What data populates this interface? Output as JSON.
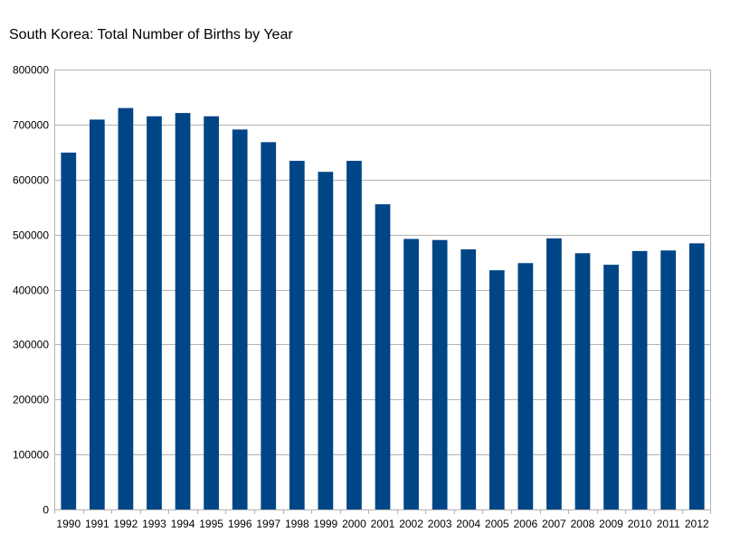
{
  "chart_data": {
    "type": "bar",
    "title": "South Korea: Total Number of Births by Year",
    "xlabel": "",
    "ylabel": "",
    "ylim": [
      0,
      800000
    ],
    "yticks": [
      0,
      100000,
      200000,
      300000,
      400000,
      500000,
      600000,
      700000,
      800000
    ],
    "grid": true,
    "legend": "none",
    "bar_color": "#004586",
    "categories": [
      "1990",
      "1991",
      "1992",
      "1993",
      "1994",
      "1995",
      "1996",
      "1997",
      "1998",
      "1999",
      "2000",
      "2001",
      "2002",
      "2003",
      "2004",
      "2005",
      "2006",
      "2007",
      "2008",
      "2009",
      "2010",
      "2011",
      "2012"
    ],
    "series": [
      {
        "values": [
          649000,
          709000,
          730000,
          715000,
          721000,
          715000,
          691000,
          668000,
          634000,
          614000,
          634000,
          555000,
          492000,
          490000,
          473000,
          435000,
          448000,
          493000,
          466000,
          445000,
          470000,
          471000,
          484000
        ]
      }
    ]
  }
}
